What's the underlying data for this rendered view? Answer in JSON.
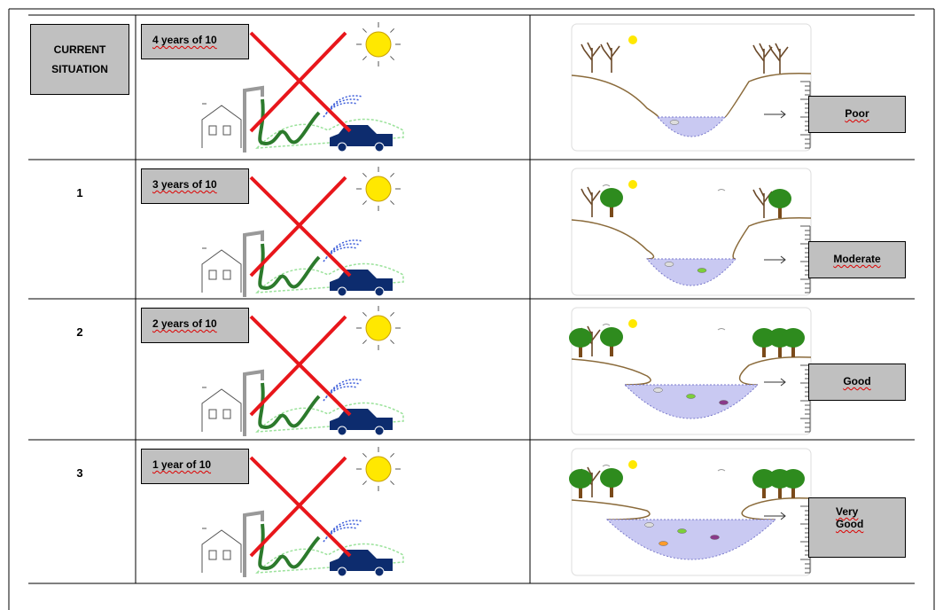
{
  "table": {
    "rows": [
      {
        "label": "CURRENT SITUATION",
        "frequency": "4 years of 10",
        "status": "Poor"
      },
      {
        "label": "1",
        "frequency": "3 years of 10",
        "status": "Moderate"
      },
      {
        "label": "2",
        "frequency": "2 years of 10",
        "status": "Good"
      },
      {
        "label": "3",
        "frequency": "1 year of 10",
        "status": "Very Good"
      }
    ]
  }
}
